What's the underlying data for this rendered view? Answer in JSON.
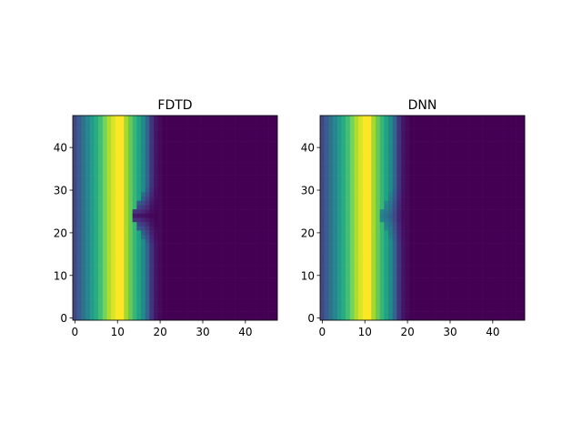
{
  "chart_data": [
    {
      "type": "heatmap",
      "title": "FDTD",
      "grid_size": [
        48,
        48
      ],
      "x_ticks": [
        0,
        10,
        20,
        30,
        40
      ],
      "y_ticks": [
        0,
        10,
        20,
        30,
        40
      ],
      "xlim": [
        -0.5,
        47.5
      ],
      "ylim": [
        47.5,
        -0.5
      ],
      "colormap": "viridis",
      "column_profile": [
        0.22,
        0.3,
        0.38,
        0.46,
        0.55,
        0.62,
        0.7,
        0.8,
        0.88,
        0.95,
        1.0,
        1.0,
        0.86,
        0.76,
        0.66,
        0.57,
        0.47,
        0.32,
        0.14,
        0.05,
        0.02,
        0.0
      ],
      "defect": {
        "center_row": 23,
        "front_column": 17,
        "half_height": 6,
        "strength": 0.9
      }
    },
    {
      "type": "heatmap",
      "title": "DNN",
      "grid_size": [
        48,
        48
      ],
      "x_ticks": [
        0,
        10,
        20,
        30,
        40
      ],
      "y_ticks": [
        0,
        10,
        20,
        30,
        40
      ],
      "xlim": [
        -0.5,
        47.5
      ],
      "ylim": [
        47.5,
        -0.5
      ],
      "colormap": "viridis",
      "column_profile": [
        0.22,
        0.3,
        0.38,
        0.46,
        0.55,
        0.62,
        0.7,
        0.8,
        0.88,
        0.95,
        1.0,
        1.0,
        0.86,
        0.76,
        0.66,
        0.57,
        0.47,
        0.32,
        0.14,
        0.05,
        0.02,
        0.0
      ],
      "defect": {
        "center_row": 23,
        "front_column": 17,
        "half_height": 6,
        "strength": 0.35
      }
    }
  ]
}
